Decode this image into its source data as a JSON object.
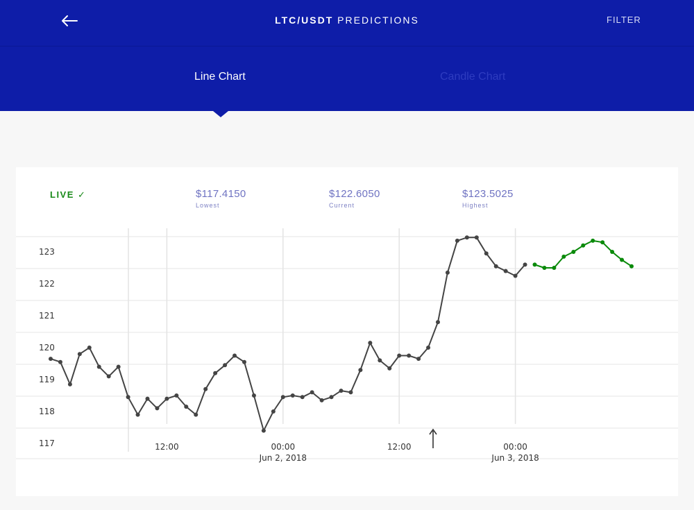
{
  "header": {
    "back_icon": "arrow-left-icon",
    "title_pair": "LTC/USDT",
    "title_suffix": " PREDICTIONS",
    "filter_label": "FILTER"
  },
  "tabs": [
    {
      "label": "Line Chart",
      "active": true
    },
    {
      "label": "Candle Chart",
      "active": false
    }
  ],
  "stats": {
    "live_label": "LIVE ✓",
    "lowest": {
      "value": "$117.4150",
      "label": "Lowest"
    },
    "current": {
      "value": "$122.6050",
      "label": "Current"
    },
    "highest": {
      "value": "$123.5025",
      "label": "Highest"
    }
  },
  "colors": {
    "header_bg": "#0e1da8",
    "actual_series": "#444444",
    "predicted_series": "#0a8a0a",
    "live": "#1a8a1a",
    "stat_text": "#6f73c2"
  },
  "chart_data": {
    "type": "line",
    "x_unit": "hours",
    "y_ticks": [
      117,
      118,
      119,
      120,
      121,
      122,
      123
    ],
    "ylim": [
      117,
      124.5
    ],
    "x_ticks": [
      {
        "x": 12,
        "label": "12:00",
        "sub": ""
      },
      {
        "x": 24,
        "label": "00:00",
        "sub": "Jun 2, 2018"
      },
      {
        "x": 36,
        "label": "12:00",
        "sub": ""
      },
      {
        "x": 48,
        "label": "00:00",
        "sub": "Jun 3, 2018"
      }
    ],
    "marker_x": 40,
    "series": [
      {
        "kind": "actual",
        "x": [
          0,
          1,
          2,
          3,
          4,
          5,
          6,
          7,
          8,
          9,
          10,
          11,
          12,
          13,
          14,
          15,
          16,
          17,
          18,
          19,
          20,
          21,
          22,
          23,
          24,
          25,
          26,
          27,
          28,
          29,
          30,
          31,
          32,
          33,
          34,
          35,
          36,
          37,
          38,
          39,
          40,
          41,
          42,
          43,
          44,
          45,
          46,
          47,
          48,
          49
        ],
        "values": [
          119.65,
          119.55,
          118.85,
          119.8,
          120.0,
          119.4,
          119.1,
          119.4,
          118.45,
          117.9,
          118.4,
          118.1,
          118.4,
          118.5,
          118.15,
          117.9,
          118.7,
          119.2,
          119.45,
          119.75,
          119.55,
          118.5,
          117.4,
          118.0,
          118.45,
          118.5,
          118.45,
          118.6,
          118.35,
          118.45,
          118.65,
          118.6,
          119.3,
          120.15,
          119.6,
          119.35,
          119.75,
          119.75,
          119.65,
          120.0,
          120.8,
          122.35,
          123.35,
          123.45,
          123.45,
          122.95,
          122.55,
          122.4,
          122.25,
          122.6
        ]
      },
      {
        "kind": "predicted",
        "x": [
          50,
          51,
          52,
          53,
          54,
          55,
          56,
          57,
          58,
          59,
          60
        ],
        "values": [
          122.6,
          122.5,
          122.5,
          122.85,
          123.0,
          123.2,
          123.35,
          123.3,
          123.0,
          122.75,
          122.55
        ]
      }
    ]
  }
}
